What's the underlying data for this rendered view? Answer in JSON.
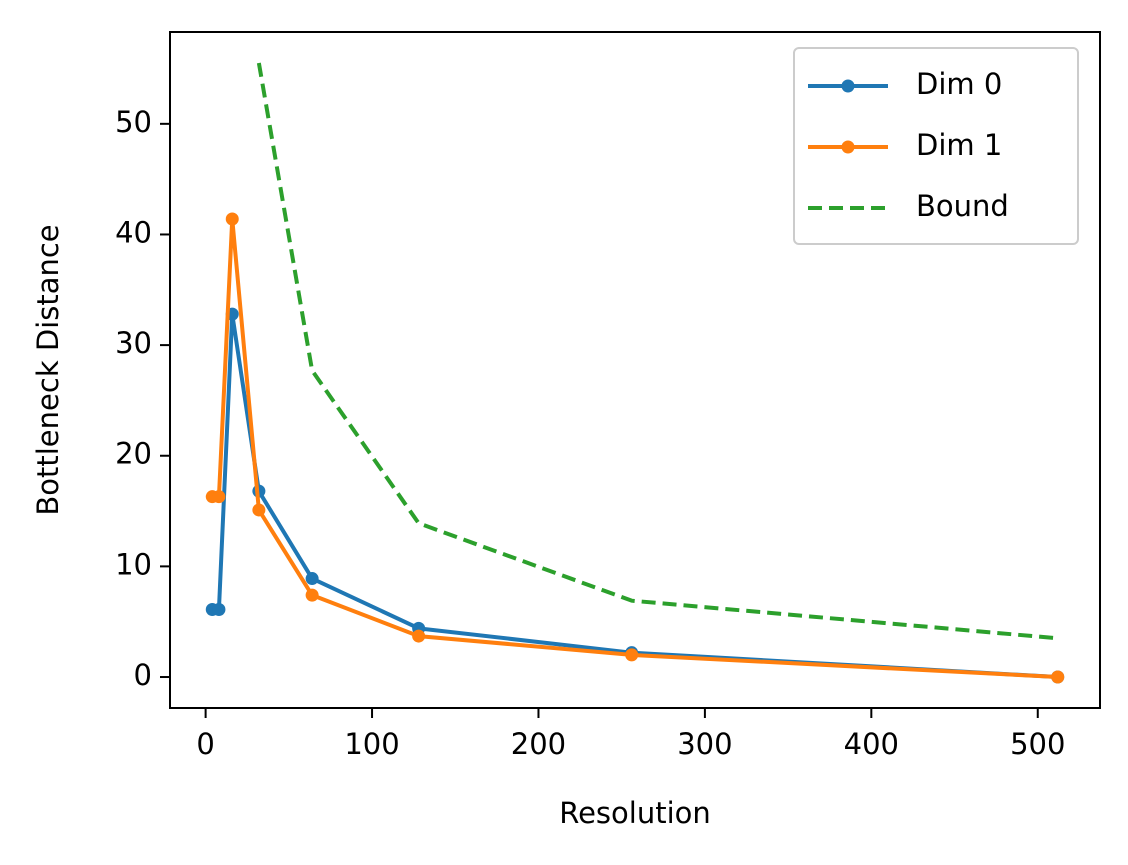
{
  "chart_data": {
    "type": "line",
    "x": [
      4,
      8,
      16,
      32,
      64,
      128,
      256,
      512
    ],
    "series": [
      {
        "name": "Dim 0",
        "color": "#1f77b4",
        "style": "solid",
        "marker": true,
        "values": [
          6.1,
          6.1,
          32.8,
          16.8,
          8.9,
          4.4,
          2.2,
          0
        ]
      },
      {
        "name": "Dim 1",
        "color": "#ff7f0e",
        "style": "solid",
        "marker": true,
        "values": [
          16.3,
          16.3,
          41.4,
          15.1,
          7.4,
          3.7,
          2.0,
          0
        ]
      },
      {
        "name": "Bound",
        "color": "#2ca02c",
        "style": "dashed",
        "marker": false,
        "values": [
          null,
          null,
          null,
          55.5,
          27.7,
          13.9,
          6.9,
          3.5
        ]
      }
    ],
    "x_label": "Resolution",
    "y_label": "Bottleneck Distance",
    "xlim": [
      -21.4,
      537.4
    ],
    "xticks": [
      0,
      100,
      200,
      300,
      400,
      500
    ],
    "ylim": [
      -2.8,
      58.3
    ],
    "yticks": [
      0,
      10,
      20,
      30,
      40,
      50
    ],
    "legend": "upper right"
  }
}
